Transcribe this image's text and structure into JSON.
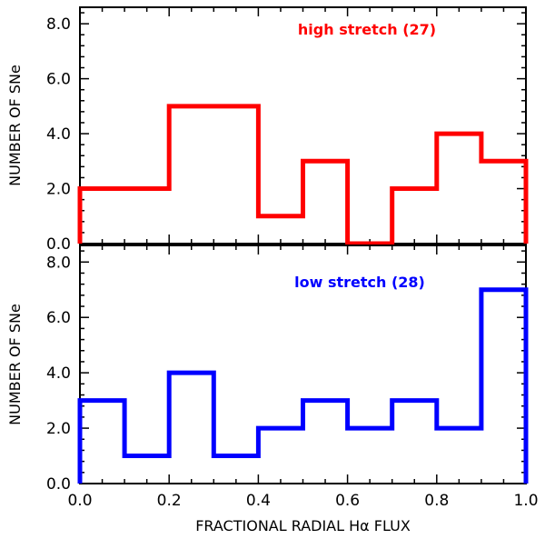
{
  "chart_data": [
    {
      "type": "bar",
      "style": "step-histogram",
      "label": "high stretch (27)",
      "color": "#ff0000",
      "bin_edges": [
        0.0,
        0.1,
        0.2,
        0.3,
        0.4,
        0.5,
        0.6,
        0.7,
        0.8,
        0.9,
        1.0
      ],
      "values": [
        2,
        2,
        5,
        5,
        1,
        3,
        0,
        2,
        4,
        3
      ],
      "ylabel": "NUMBER OF SNe",
      "xlim": [
        0.0,
        1.0
      ],
      "ylim": [
        0.0,
        8.6
      ],
      "yticks": [
        "0.0",
        "2.0",
        "4.0",
        "6.0",
        "8.0"
      ],
      "grid": false
    },
    {
      "type": "bar",
      "style": "step-histogram",
      "label": "low stretch (28)",
      "color": "#0000ff",
      "bin_edges": [
        0.0,
        0.1,
        0.2,
        0.3,
        0.4,
        0.5,
        0.6,
        0.7,
        0.8,
        0.9,
        1.0
      ],
      "values": [
        3,
        1,
        4,
        1,
        2,
        3,
        2,
        3,
        2,
        7
      ],
      "ylabel": "NUMBER OF SNe",
      "xlabel": "FRACTIONAL RADIAL Hα FLUX",
      "xlim": [
        0.0,
        1.0
      ],
      "ylim": [
        0.0,
        8.6
      ],
      "yticks": [
        "0.0",
        "2.0",
        "4.0",
        "6.0",
        "8.0"
      ],
      "xticks": [
        "0.0",
        "0.2",
        "0.4",
        "0.6",
        "0.8",
        "1.0"
      ],
      "grid": false
    }
  ]
}
